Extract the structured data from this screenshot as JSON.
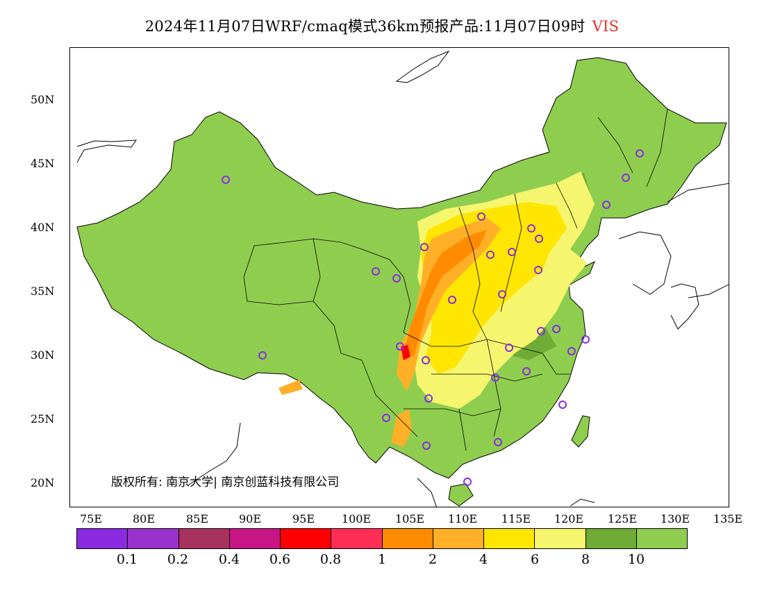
{
  "title": {
    "text": "2024年11月07日WRF/cmaq模式36km预报产品:11月07日09时",
    "variable": "VIS",
    "variable_color": "#e03030"
  },
  "axes": {
    "lat_labels": [
      "50N",
      "45N",
      "40N",
      "35N",
      "30N",
      "25N",
      "20N"
    ],
    "lon_labels": [
      "75E",
      "80E",
      "85E",
      "90E",
      "95E",
      "100E",
      "105E",
      "110E",
      "115E",
      "120E",
      "125E",
      "130E",
      "135E"
    ]
  },
  "legend": {
    "colors": [
      "#8a2be2",
      "#9932cc",
      "#a8325e",
      "#c71585",
      "#ff0000",
      "#ff2e56",
      "#ff8c00",
      "#ffb026",
      "#ffe600",
      "#f5f56e",
      "#6fab35",
      "#8fcd4f"
    ],
    "ticks": [
      "0.1",
      "0.2",
      "0.4",
      "0.6",
      "0.8",
      "1",
      "2",
      "4",
      "6",
      "8",
      "10"
    ]
  },
  "copyright": "版权所有: 南京大学| 南京创蓝科技有限公司",
  "map": {
    "base_color": "#8fcd4f",
    "dark_green": "#6fab35",
    "light_yellow": "#f5f56e",
    "yellow": "#ffe600",
    "orange_light": "#ffb026",
    "orange": "#ff8c00",
    "red": "#ff0000",
    "station_marker_color": "#8a2be2"
  }
}
